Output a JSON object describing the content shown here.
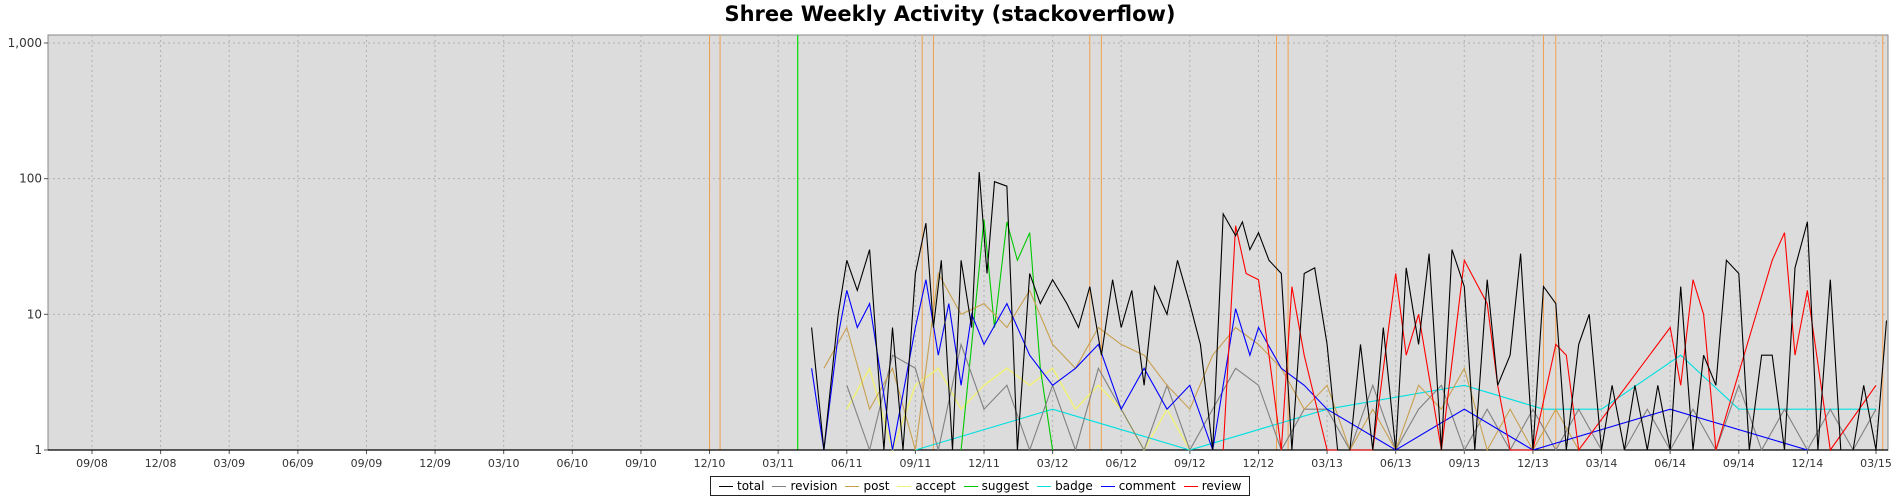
{
  "chart_data": {
    "type": "line",
    "title": "Shree Weekly Activity (stackoverflow)",
    "xlabel": "",
    "ylabel": "",
    "y_scale": "log",
    "ylim": [
      1,
      1000
    ],
    "y_ticks": [
      "1",
      "10",
      "100",
      "1,000"
    ],
    "x_ticks": [
      "09/08",
      "12/08",
      "03/09",
      "06/09",
      "09/09",
      "12/09",
      "03/10",
      "06/10",
      "09/10",
      "12/10",
      "03/11",
      "06/11",
      "09/11",
      "12/11",
      "03/12",
      "06/12",
      "09/12",
      "12/12",
      "03/13",
      "06/13",
      "09/13",
      "12/13",
      "03/14",
      "06/14",
      "09/14",
      "12/14",
      "03/15"
    ],
    "grid": true,
    "legend_position": "bottom-center",
    "event_markers": {
      "green": [
        "2011-03-27"
      ],
      "orange": [
        "2010-12-01",
        "2010-12-15",
        "2011-09-10",
        "2011-09-25",
        "2012-04-20",
        "2012-05-05",
        "2012-12-25",
        "2013-01-10",
        "2013-12-15",
        "2014-01-01",
        "2015-03-10"
      ]
    },
    "series": [
      {
        "name": "total",
        "color": "#000000",
        "x": [
          "2011-04-15",
          "2011-05-01",
          "2011-05-20",
          "2011-06-01",
          "2011-06-15",
          "2011-07-01",
          "2011-07-20",
          "2011-08-01",
          "2011-08-15",
          "2011-09-01",
          "2011-09-15",
          "2011-09-25",
          "2011-10-05",
          "2011-10-20",
          "2011-11-01",
          "2011-11-15",
          "2011-11-25",
          "2011-12-05",
          "2011-12-15",
          "2012-01-01",
          "2012-01-15",
          "2012-02-01",
          "2012-02-15",
          "2012-03-01",
          "2012-03-20",
          "2012-04-05",
          "2012-04-20",
          "2012-05-05",
          "2012-05-20",
          "2012-06-01",
          "2012-06-15",
          "2012-07-01",
          "2012-07-15",
          "2012-08-01",
          "2012-08-15",
          "2012-09-01",
          "2012-09-15",
          "2012-10-01",
          "2012-10-15",
          "2012-11-01",
          "2012-11-10",
          "2012-11-20",
          "2012-12-01",
          "2012-12-15",
          "2013-01-01",
          "2013-01-15",
          "2013-02-01",
          "2013-02-15",
          "2013-03-01",
          "2013-03-15",
          "2013-04-01",
          "2013-04-15",
          "2013-05-01",
          "2013-05-15",
          "2013-06-01",
          "2013-06-15",
          "2013-07-01",
          "2013-07-15",
          "2013-08-01",
          "2013-08-15",
          "2013-09-01",
          "2013-09-15",
          "2013-10-01",
          "2013-10-15",
          "2013-11-01",
          "2013-11-15",
          "2013-12-01",
          "2013-12-15",
          "2014-01-01",
          "2014-01-15",
          "2014-02-01",
          "2014-02-15",
          "2014-03-01",
          "2014-03-15",
          "2014-04-01",
          "2014-04-15",
          "2014-05-01",
          "2014-05-15",
          "2014-06-01",
          "2014-06-15",
          "2014-07-01",
          "2014-07-15",
          "2014-08-01",
          "2014-08-15",
          "2014-09-01",
          "2014-09-15",
          "2014-10-01",
          "2014-10-15",
          "2014-11-01",
          "2014-11-15",
          "2014-12-01",
          "2014-12-15",
          "2015-01-01",
          "2015-01-15",
          "2015-02-01",
          "2015-02-15",
          "2015-03-01",
          "2015-03-15"
        ],
        "y": [
          8,
          1,
          10,
          25,
          15,
          30,
          1,
          8,
          1,
          20,
          47,
          8,
          25,
          1,
          25,
          8,
          112,
          20,
          95,
          88,
          1,
          20,
          12,
          18,
          12,
          8,
          16,
          5,
          18,
          8,
          15,
          3,
          16,
          10,
          25,
          12,
          6,
          1,
          55,
          38,
          48,
          30,
          40,
          25,
          20,
          1,
          20,
          22,
          6,
          1,
          1,
          6,
          1,
          8,
          1,
          22,
          6,
          28,
          1,
          30,
          16,
          1,
          18,
          3,
          5,
          28,
          1,
          16,
          12,
          1,
          6,
          10,
          1,
          3,
          1,
          3,
          1,
          3,
          1,
          16,
          1,
          5,
          3,
          25,
          20,
          1,
          5,
          5,
          1,
          22,
          48,
          1,
          18,
          1,
          1,
          3,
          1,
          9
        ]
      },
      {
        "name": "revision",
        "color": "#808080",
        "x": [
          "2011-06-01",
          "2011-07-01",
          "2011-08-01",
          "2011-09-01",
          "2011-10-01",
          "2011-11-01",
          "2011-12-01",
          "2012-01-01",
          "2012-02-01",
          "2012-03-01",
          "2012-04-01",
          "2012-05-01",
          "2012-06-01",
          "2012-07-01",
          "2012-08-01",
          "2012-09-01",
          "2012-10-01",
          "2012-11-01",
          "2012-12-01",
          "2013-01-01",
          "2013-02-01",
          "2013-03-01",
          "2013-04-01",
          "2013-05-01",
          "2013-06-01",
          "2013-07-01",
          "2013-08-01",
          "2013-09-01",
          "2013-10-01",
          "2013-11-01",
          "2013-12-01",
          "2014-01-01",
          "2014-02-01",
          "2014-03-01",
          "2014-04-01",
          "2014-05-01",
          "2014-06-01",
          "2014-07-01",
          "2014-08-01",
          "2014-09-01",
          "2014-10-01",
          "2014-11-01",
          "2014-12-01",
          "2015-01-01",
          "2015-02-01",
          "2015-03-01"
        ],
        "y": [
          3,
          1,
          5,
          4,
          1,
          6,
          2,
          3,
          1,
          3,
          1,
          4,
          2,
          1,
          3,
          1,
          2,
          4,
          3,
          1,
          2,
          2,
          1,
          3,
          1,
          2,
          3,
          1,
          2,
          1,
          2,
          1,
          2,
          1,
          1,
          2,
          1,
          2,
          1,
          3,
          1,
          2,
          1,
          2,
          1,
          2
        ]
      },
      {
        "name": "post",
        "color": "#c8a050",
        "x": [
          "2011-05-01",
          "2011-06-01",
          "2011-07-01",
          "2011-08-01",
          "2011-09-01",
          "2011-10-01",
          "2011-11-01",
          "2011-12-01",
          "2012-01-01",
          "2012-02-01",
          "2012-03-01",
          "2012-04-01",
          "2012-05-01",
          "2012-06-01",
          "2012-07-01",
          "2012-08-01",
          "2012-09-01",
          "2012-10-01",
          "2012-11-01",
          "2012-12-01",
          "2013-01-01",
          "2013-02-01",
          "2013-03-01",
          "2013-04-01",
          "2013-05-01",
          "2013-06-01",
          "2013-07-01",
          "2013-08-01",
          "2013-09-01",
          "2013-10-01",
          "2013-11-01",
          "2013-12-01",
          "2014-01-01",
          "2014-02-01"
        ],
        "y": [
          4,
          8,
          2,
          4,
          1,
          20,
          10,
          12,
          8,
          15,
          6,
          4,
          8,
          6,
          5,
          3,
          2,
          5,
          8,
          6,
          4,
          2,
          3,
          1,
          2,
          1,
          3,
          2,
          4,
          1,
          2,
          1,
          2,
          1
        ]
      },
      {
        "name": "accept",
        "color": "#f0f080",
        "x": [
          "2011-06-01",
          "2011-07-01",
          "2011-08-01",
          "2011-09-01",
          "2011-10-01",
          "2011-11-01",
          "2011-12-01",
          "2012-01-01",
          "2012-02-01",
          "2012-03-01",
          "2012-04-01",
          "2012-05-01",
          "2012-06-01",
          "2012-07-01",
          "2012-08-01",
          "2012-09-01"
        ],
        "y": [
          2,
          4,
          1,
          3,
          4,
          2,
          3,
          4,
          3,
          4,
          2,
          3,
          2,
          1,
          2,
          1
        ]
      },
      {
        "name": "suggest",
        "color": "#00c800",
        "x": [
          "2011-11-01",
          "2011-11-15",
          "2011-12-01",
          "2011-12-15",
          "2012-01-01",
          "2012-01-15",
          "2012-02-01",
          "2012-02-15",
          "2012-03-01"
        ],
        "y": [
          1,
          6,
          50,
          8,
          48,
          25,
          40,
          4,
          1
        ]
      },
      {
        "name": "badge",
        "color": "#00e0e0",
        "x": [
          "2011-09-01",
          "2012-03-01",
          "2012-09-01",
          "2013-03-01",
          "2013-09-01",
          "2013-12-15",
          "2014-03-01",
          "2014-06-15",
          "2014-09-01",
          "2015-03-01"
        ],
        "y": [
          1,
          2,
          1,
          2,
          3,
          2,
          2,
          5,
          2,
          2
        ]
      },
      {
        "name": "comment",
        "color": "#0000ff",
        "x": [
          "2011-04-15",
          "2011-05-01",
          "2011-05-20",
          "2011-06-01",
          "2011-06-15",
          "2011-07-01",
          "2011-08-01",
          "2011-09-01",
          "2011-09-15",
          "2011-10-01",
          "2011-10-15",
          "2011-11-01",
          "2011-11-15",
          "2011-12-01",
          "2012-01-01",
          "2012-02-01",
          "2012-03-01",
          "2012-04-01",
          "2012-05-01",
          "2012-06-01",
          "2012-07-01",
          "2012-08-01",
          "2012-09-01",
          "2012-10-01",
          "2012-11-01",
          "2012-11-20",
          "2012-12-01",
          "2013-01-01",
          "2013-02-01",
          "2013-03-01",
          "2013-06-01",
          "2013-09-01",
          "2013-12-01",
          "2014-06-01",
          "2014-12-01"
        ],
        "y": [
          4,
          1,
          7,
          15,
          8,
          12,
          1,
          8,
          18,
          5,
          12,
          3,
          10,
          6,
          12,
          5,
          3,
          4,
          6,
          2,
          4,
          2,
          3,
          1,
          11,
          5,
          8,
          4,
          3,
          2,
          1,
          2,
          1,
          2,
          1
        ]
      },
      {
        "name": "review",
        "color": "#ff0000",
        "x": [
          "2012-10-15",
          "2012-11-01",
          "2012-11-15",
          "2012-12-01",
          "2012-12-15",
          "2013-01-01",
          "2013-01-15",
          "2013-02-01",
          "2013-03-01",
          "2013-04-01",
          "2013-05-01",
          "2013-06-01",
          "2013-06-15",
          "2013-07-01",
          "2013-08-01",
          "2013-09-01",
          "2013-10-01",
          "2013-10-15",
          "2013-11-01",
          "2013-12-01",
          "2014-01-01",
          "2014-01-15",
          "2014-02-01",
          "2014-06-01",
          "2014-06-15",
          "2014-07-01",
          "2014-07-15",
          "2014-08-01",
          "2014-10-15",
          "2014-11-01",
          "2014-11-15",
          "2014-12-01",
          "2015-01-01",
          "2015-03-01"
        ],
        "y": [
          1,
          45,
          20,
          18,
          5,
          1,
          16,
          5,
          1,
          1,
          1,
          20,
          5,
          10,
          1,
          25,
          12,
          3,
          1,
          1,
          6,
          5,
          1,
          8,
          3,
          18,
          10,
          1,
          25,
          40,
          5,
          15,
          1,
          3
        ]
      }
    ]
  }
}
